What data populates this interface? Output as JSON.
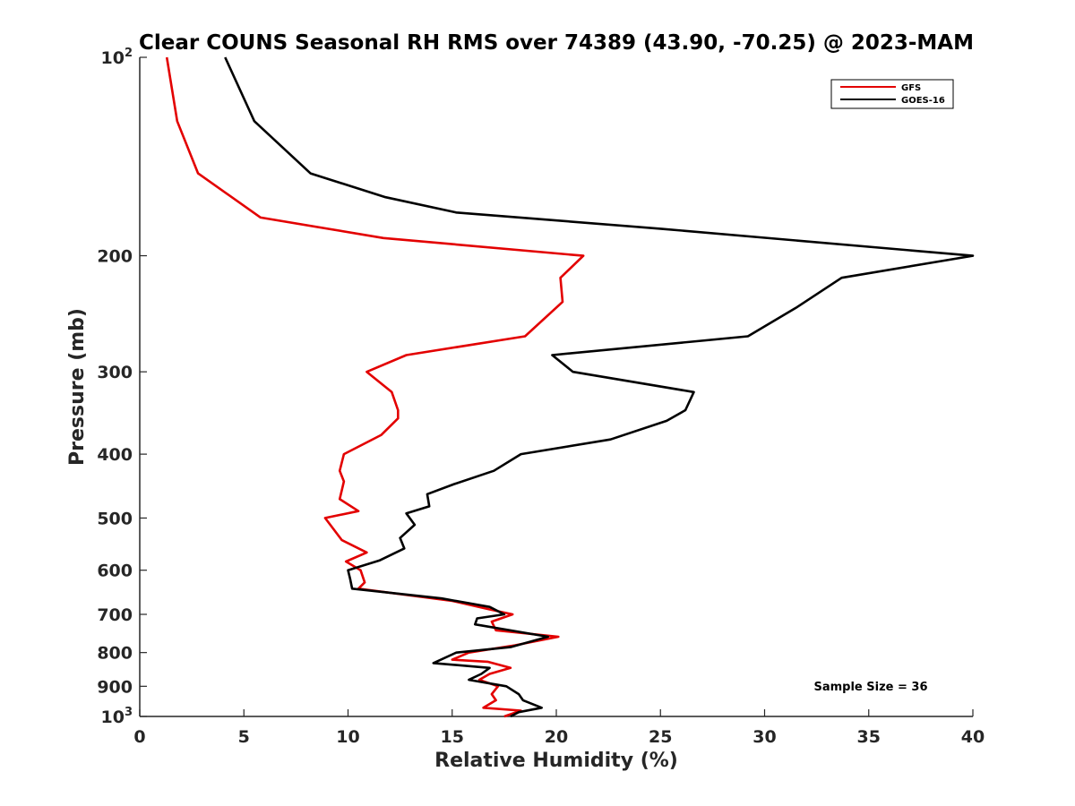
{
  "chart_data": {
    "type": "line",
    "title": "Clear COUNS Seasonal RH RMS over 74389 (43.90, -70.25) @ 2023-MAM",
    "xlabel": "Relative Humidity (%)",
    "ylabel": "Pressure (mb)",
    "xlim": [
      0,
      40
    ],
    "ylim": [
      100,
      1000
    ],
    "yscale": "log",
    "y_reversed": true,
    "grid": false,
    "legend_position": "top-right",
    "x_ticks": [
      "0",
      "5",
      "10",
      "15",
      "20",
      "25",
      "30",
      "35",
      "40"
    ],
    "y_ticks": [
      {
        "value": 100,
        "base": "10",
        "exp": "2"
      },
      {
        "value": 200,
        "label": "200"
      },
      {
        "value": 300,
        "label": "300"
      },
      {
        "value": 400,
        "label": "400"
      },
      {
        "value": 500,
        "label": "500"
      },
      {
        "value": 600,
        "label": "600"
      },
      {
        "value": 700,
        "label": "700"
      },
      {
        "value": 800,
        "label": "800"
      },
      {
        "value": 900,
        "label": "900"
      },
      {
        "value": 1000,
        "base": "10",
        "exp": "3"
      }
    ],
    "series": [
      {
        "name": "GFS",
        "color": "#e30000",
        "points": [
          [
            1.3,
            100
          ],
          [
            1.8,
            125
          ],
          [
            2.8,
            150
          ],
          [
            5.8,
            175
          ],
          [
            11.7,
            188
          ],
          [
            21.3,
            200
          ],
          [
            20.2,
            216
          ],
          [
            20.3,
            235
          ],
          [
            18.5,
            265
          ],
          [
            12.8,
            283
          ],
          [
            10.9,
            300
          ],
          [
            12.1,
            322
          ],
          [
            12.4,
            343
          ],
          [
            12.4,
            353
          ],
          [
            11.6,
            374
          ],
          [
            9.8,
            400
          ],
          [
            9.6,
            424
          ],
          [
            9.8,
            440
          ],
          [
            9.6,
            468
          ],
          [
            10.5,
            488
          ],
          [
            8.9,
            500
          ],
          [
            9.7,
            540
          ],
          [
            10.9,
            564
          ],
          [
            9.9,
            582
          ],
          [
            10.6,
            600
          ],
          [
            10.8,
            626
          ],
          [
            10.5,
            640
          ],
          [
            15.0,
            668
          ],
          [
            16.8,
            688
          ],
          [
            17.9,
            700
          ],
          [
            16.9,
            718
          ],
          [
            17.1,
            740
          ],
          [
            20.1,
            757
          ],
          [
            18.0,
            780
          ],
          [
            15.8,
            800
          ],
          [
            15.0,
            820
          ],
          [
            16.7,
            826
          ],
          [
            17.8,
            844
          ],
          [
            16.8,
            862
          ],
          [
            16.3,
            880
          ],
          [
            17.2,
            900
          ],
          [
            16.9,
            925
          ],
          [
            17.1,
            945
          ],
          [
            16.5,
            970
          ],
          [
            18.3,
            980
          ],
          [
            17.5,
            1000
          ]
        ]
      },
      {
        "name": "GOES-16",
        "color": "#000000",
        "points": [
          [
            4.1,
            100
          ],
          [
            5.5,
            125
          ],
          [
            8.2,
            150
          ],
          [
            11.8,
            163
          ],
          [
            15.2,
            172
          ],
          [
            25.0,
            182
          ],
          [
            40.0,
            200
          ],
          [
            33.7,
            216
          ],
          [
            31.5,
            240
          ],
          [
            29.2,
            265
          ],
          [
            19.8,
            283
          ],
          [
            20.8,
            300
          ],
          [
            26.6,
            322
          ],
          [
            26.2,
            343
          ],
          [
            25.3,
            356
          ],
          [
            22.6,
            380
          ],
          [
            18.3,
            400
          ],
          [
            17.0,
            424
          ],
          [
            15.1,
            444
          ],
          [
            13.8,
            460
          ],
          [
            13.9,
            480
          ],
          [
            12.8,
            492
          ],
          [
            13.2,
            512
          ],
          [
            12.5,
            536
          ],
          [
            12.7,
            556
          ],
          [
            11.5,
            580
          ],
          [
            10.0,
            600
          ],
          [
            10.1,
            618
          ],
          [
            10.2,
            640
          ],
          [
            14.5,
            662
          ],
          [
            16.8,
            682
          ],
          [
            17.5,
            700
          ],
          [
            16.2,
            710
          ],
          [
            16.1,
            725
          ],
          [
            19.6,
            757
          ],
          [
            17.8,
            785
          ],
          [
            15.2,
            800
          ],
          [
            14.1,
            830
          ],
          [
            16.8,
            844
          ],
          [
            16.4,
            862
          ],
          [
            15.8,
            880
          ],
          [
            17.6,
            900
          ],
          [
            18.2,
            925
          ],
          [
            18.4,
            945
          ],
          [
            19.3,
            970
          ],
          [
            18.2,
            985
          ],
          [
            17.8,
            1000
          ]
        ]
      }
    ],
    "annotations": [
      "Sample Size = 36"
    ]
  }
}
